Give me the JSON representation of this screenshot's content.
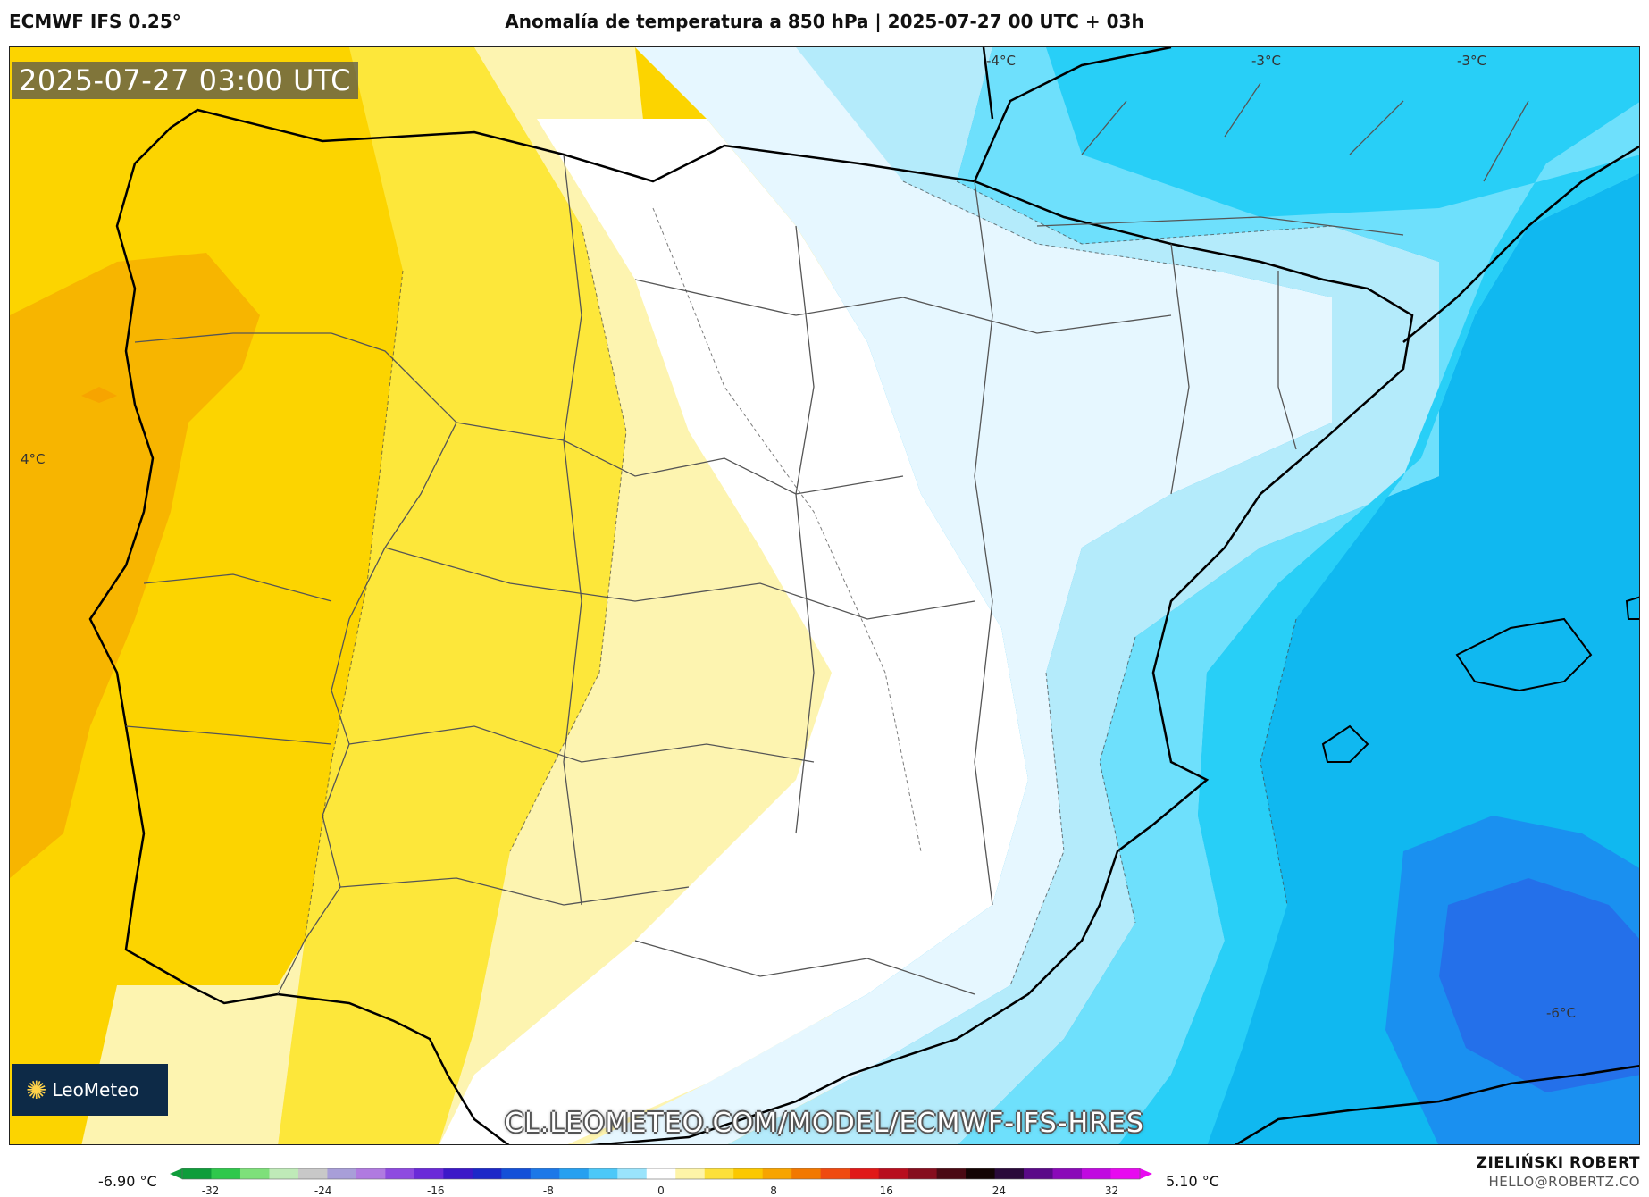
{
  "header": {
    "model": "ECMWF IFS 0.25°",
    "title": "Anomalía de temperatura a 850 hPa | 2025-07-27 00 UTC + 03h"
  },
  "map": {
    "valid_time": "2025-07-27 03:00 UTC",
    "contour_labels": [
      {
        "text": "4°C"
      },
      {
        "text": "-4°C"
      },
      {
        "text": "-3°C"
      },
      {
        "text": "-3°C"
      },
      {
        "text": "-6°C"
      }
    ],
    "watermark_url": "CL.LEOMETEO.COM/MODEL/ECMWF-IFS-HRES",
    "logo_text": "LeoMeteo",
    "colors": {
      "warm_dark": "#f7b500",
      "warm": "#fcd400",
      "warm_light": "#fde73a",
      "warm_pale": "#fdf4b0",
      "neutral": "#ffffff",
      "cool_pale": "#e6f7ff",
      "cool_light": "#b4ebfb",
      "cool": "#6ee0fc",
      "cool_mid": "#28cff7",
      "cool_dark": "#10b8f0",
      "cool_deep": "#1a90f0",
      "cool_deepest": "#2470ea"
    }
  },
  "legend": {
    "min_value": "-6.90 °C",
    "max_value": "5.10 °C",
    "ticks": [
      "-32",
      "-24",
      "-16",
      "-8",
      "0",
      "8",
      "16",
      "24",
      "32"
    ],
    "scale_min": -34,
    "scale_max": 34,
    "colors": [
      "#0f9d3b",
      "#2fc84c",
      "#7ee07a",
      "#bfeab8",
      "#c8c8c8",
      "#a89ed8",
      "#b07ae0",
      "#8e4ae0",
      "#6a2ad8",
      "#3c18c8",
      "#1c28c8",
      "#1450d8",
      "#1c78e8",
      "#26a0f0",
      "#4cc8f8",
      "#9ae4fc",
      "#ffffff",
      "#fef4a8",
      "#fde03a",
      "#fbc800",
      "#f7a400",
      "#f27800",
      "#ef4a10",
      "#e01818",
      "#b80e1e",
      "#860e1e",
      "#4a0a14",
      "#140404",
      "#2a0a3a",
      "#5a0a88",
      "#8a0ab8",
      "#c00ae0",
      "#e80af0"
    ]
  },
  "credits": {
    "author": "ZIELIŃSKI ROBERT",
    "email": "HELLO@ROBERTZ.CO"
  }
}
